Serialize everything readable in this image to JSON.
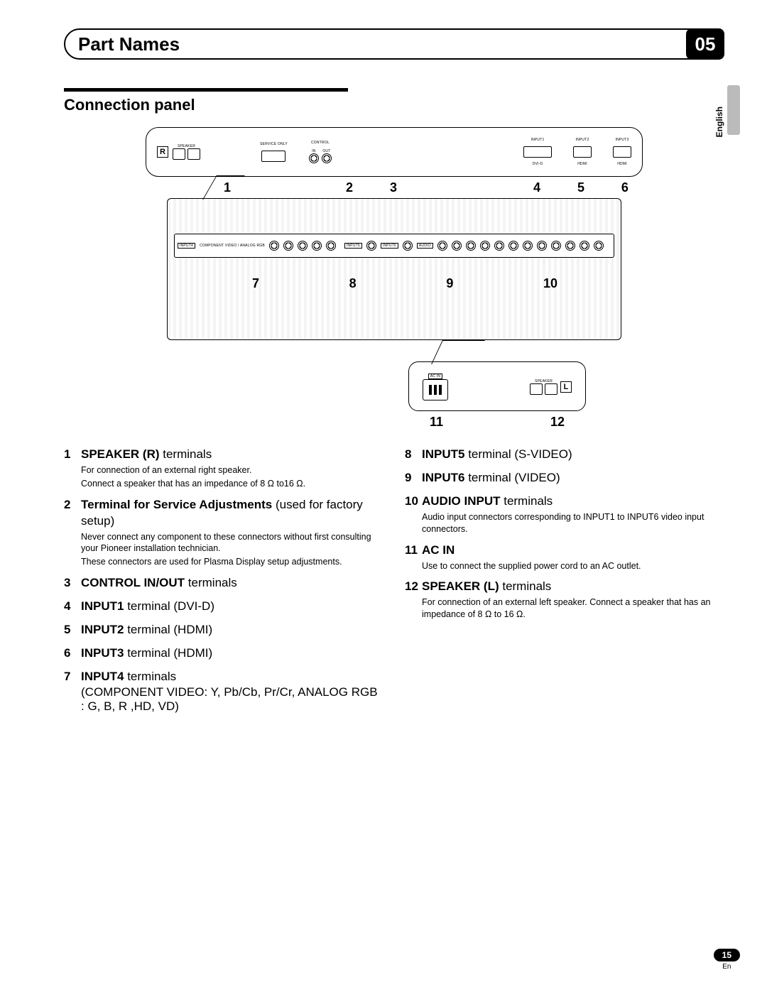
{
  "header": {
    "title": "Part Names",
    "chapter": "05"
  },
  "language_tab": "English",
  "section_heading": "Connection panel",
  "diagram": {
    "top_numbers": [
      "1",
      "2",
      "3",
      "4",
      "5",
      "6"
    ],
    "mid_numbers": [
      "7",
      "8",
      "9",
      "10"
    ],
    "bottom_numbers": [
      "11",
      "12"
    ],
    "top_labels": {
      "speaker": "SPEAKER",
      "r_mark": "R",
      "service": "SERVICE ONLY",
      "control": "CONTROL",
      "in": "IN",
      "out": "OUT",
      "input1": "INPUT1",
      "dvid": "DVI-D",
      "input2": "INPUT2",
      "input3": "INPUT3",
      "hdmi": "HDMI"
    },
    "mid_labels": {
      "input4": "INPUT4",
      "component": "COMPONENT VIDEO / ANALOG RGB",
      "input5": "INPUT5",
      "svideo": "S-VIDEO",
      "input6": "INPUT6",
      "video": "VIDEO",
      "audio": "AUDIO",
      "r": "R",
      "l": "L"
    },
    "bottom_labels": {
      "ac_in": "AC IN",
      "speaker": "SPEAKER",
      "l_mark": "L"
    }
  },
  "left_items": [
    {
      "n": "1",
      "title_bold": "SPEAKER (R)",
      "title_rest": " terminals",
      "body": [
        "For connection of an external right speaker.",
        "Connect a speaker that has an impedance of 8 Ω to16 Ω."
      ]
    },
    {
      "n": "2",
      "title_bold": "Terminal for Service Adjustments",
      "title_rest": " (used for factory setup)",
      "body": [
        "Never connect any component to these connectors without first consulting your Pioneer installation technician.",
        "These connectors are used for Plasma Display setup adjustments."
      ]
    },
    {
      "n": "3",
      "title_bold": "CONTROL IN/OUT",
      "title_rest": " terminals",
      "body": []
    },
    {
      "n": "4",
      "title_bold": "INPUT1",
      "title_rest": " terminal (DVI-D)",
      "body": []
    },
    {
      "n": "5",
      "title_bold": "INPUT2",
      "title_rest": " terminal (HDMI)",
      "body": []
    },
    {
      "n": "6",
      "title_bold": "INPUT3",
      "title_rest": " terminal (HDMI)",
      "body": []
    },
    {
      "n": "7",
      "title_bold": "INPUT4",
      "title_rest": " terminals",
      "extra": "(COMPONENT VIDEO: Y, Pb/Cb, Pr/Cr, ANALOG RGB : G, B, R ,HD, VD)",
      "body": []
    }
  ],
  "right_items": [
    {
      "n": "8",
      "title_bold": "INPUT5",
      "title_rest": " terminal (S-VIDEO)",
      "body": []
    },
    {
      "n": "9",
      "title_bold": "INPUT6",
      "title_rest": " terminal (VIDEO)",
      "body": []
    },
    {
      "n": "10",
      "title_bold": "AUDIO INPUT",
      "title_rest": " terminals",
      "body": [
        "Audio input connectors corresponding to INPUT1 to INPUT6 video input connectors."
      ]
    },
    {
      "n": "11",
      "title_bold": "AC IN",
      "title_rest": "",
      "body": [
        "Use to connect the supplied power cord to an AC outlet."
      ]
    },
    {
      "n": "12",
      "title_bold": "SPEAKER (L)",
      "title_rest": " terminals",
      "body": [
        "For connection of an external left speaker. Connect a speaker that has an impedance of 8 Ω to 16 Ω."
      ]
    }
  ],
  "footer": {
    "page": "15",
    "lang": "En"
  }
}
